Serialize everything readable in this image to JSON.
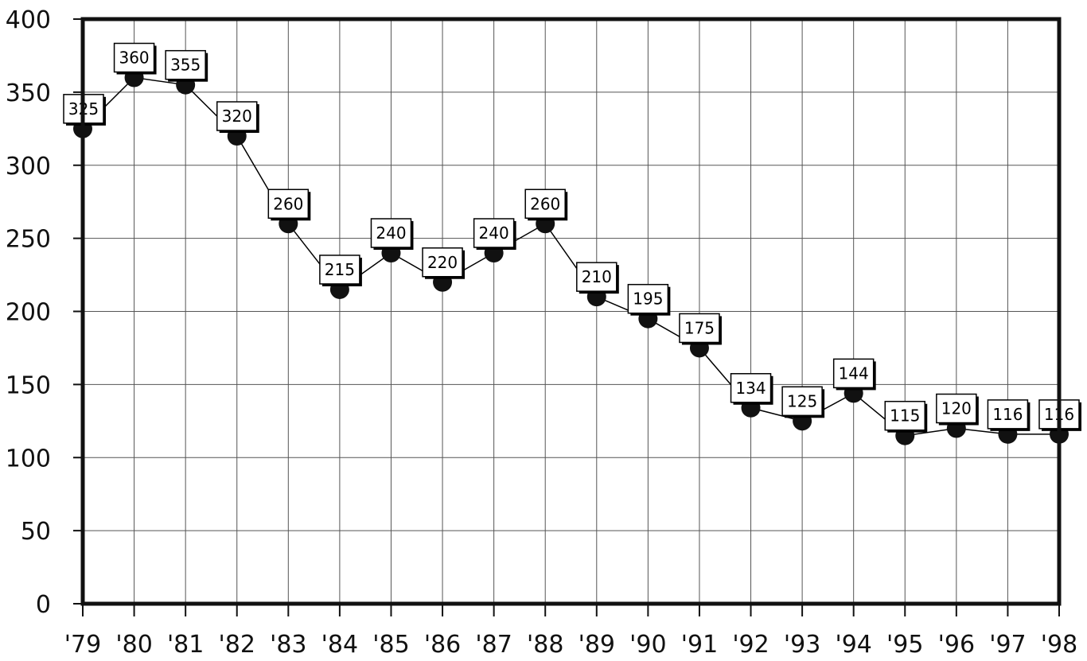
{
  "chart_data": {
    "type": "line",
    "title": "",
    "xlabel": "",
    "ylabel": "",
    "categories": [
      "'79",
      "'80",
      "'81",
      "'82",
      "'83",
      "'84",
      "'85",
      "'86",
      "'87",
      "'88",
      "'89",
      "'90",
      "'91",
      "'92",
      "'93",
      "'94",
      "'95",
      "'96",
      "'97",
      "'98"
    ],
    "values": [
      325,
      360,
      355,
      320,
      260,
      215,
      240,
      220,
      240,
      260,
      210,
      195,
      175,
      134,
      125,
      144,
      115,
      120,
      116,
      116
    ],
    "ylim": [
      0,
      400
    ],
    "yticks": [
      "0",
      "50",
      "100",
      "150",
      "200",
      "250",
      "300",
      "350",
      "400"
    ],
    "data_labels": [
      "325",
      "360",
      "355",
      "320",
      "260",
      "215",
      "240",
      "220",
      "240",
      "260",
      "210",
      "195",
      "175",
      "134",
      "125",
      "144",
      "115",
      "120",
      "116",
      "116"
    ],
    "grid": true,
    "legend": "none",
    "colors": {
      "line": "#000000",
      "marker": "#111111",
      "grid": "#555555",
      "frame": "#111111",
      "label_box": "#ffffff"
    }
  }
}
